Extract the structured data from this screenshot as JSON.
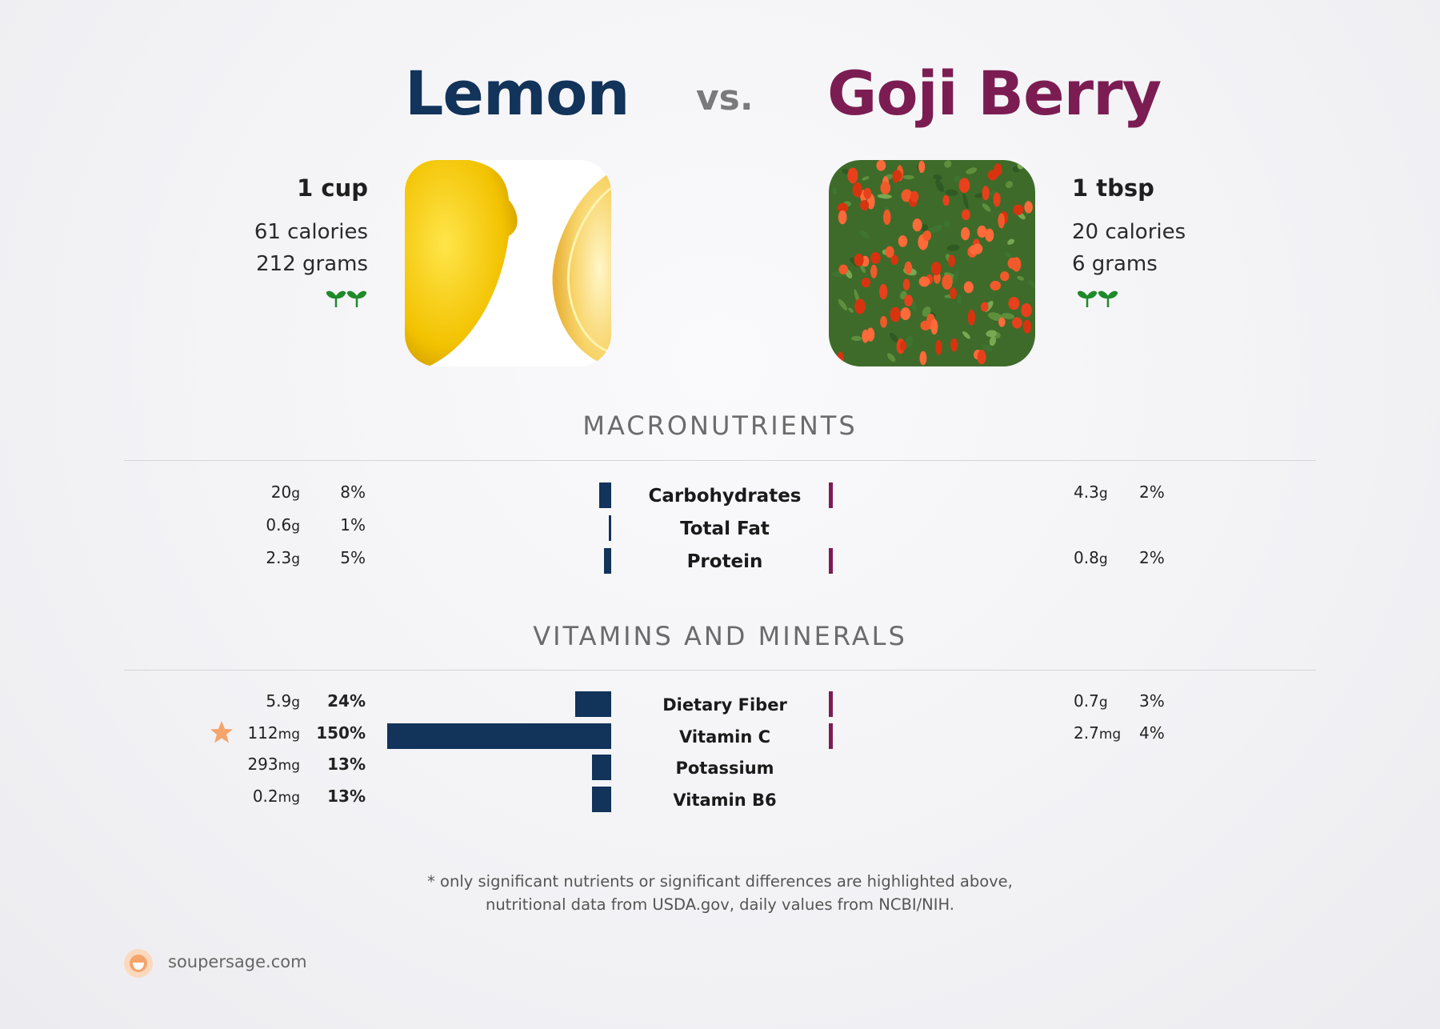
{
  "header": {
    "left_food": "Lemon",
    "vs": "vs.",
    "right_food": "Goji Berry",
    "left_color": "#12335a",
    "right_color": "#7b1d52"
  },
  "left_info": {
    "serving": "1 cup",
    "calories": "61 calories",
    "grams": "212 grams",
    "icon": "vegan-sprout-icon"
  },
  "right_info": {
    "serving": "1 tbsp",
    "calories": "20 calories",
    "grams": "6 grams",
    "icon": "vegan-sprout-icon"
  },
  "sections": {
    "macro_title": "MACRONUTRIENTS",
    "vitamins_title": "VITAMINS AND MINERALS"
  },
  "chart_data": {
    "type": "bar",
    "orientation": "horizontal",
    "layout": "diverging comparison",
    "series": [
      {
        "name": "Lemon",
        "color": "#12335a"
      },
      {
        "name": "Goji Berry",
        "color": "#7b1d52"
      }
    ],
    "macronutrients": [
      {
        "name": "Carbohydrates",
        "left_amount": "20",
        "left_unit": "g",
        "left_pct": "8%",
        "left_value": 8,
        "right_amount": "4.3",
        "right_unit": "g",
        "right_pct": "2%",
        "right_value": 2
      },
      {
        "name": "Total Fat",
        "left_amount": "0.6",
        "left_unit": "g",
        "left_pct": "1%",
        "left_value": 1,
        "right_amount": "",
        "right_unit": "",
        "right_pct": "",
        "right_value": 0
      },
      {
        "name": "Protein",
        "left_amount": "2.3",
        "left_unit": "g",
        "left_pct": "5%",
        "left_value": 5,
        "right_amount": "0.8",
        "right_unit": "g",
        "right_pct": "2%",
        "right_value": 2
      }
    ],
    "vitamins": [
      {
        "name": "Dietary Fiber",
        "left_amount": "5.9",
        "left_unit": "g",
        "left_pct": "24%",
        "left_value": 24,
        "right_amount": "0.7",
        "right_unit": "g",
        "right_pct": "3%",
        "right_value": 3
      },
      {
        "name": "Vitamin C",
        "left_amount": "112",
        "left_unit": "mg",
        "left_pct": "150%",
        "left_value": 150,
        "right_amount": "2.7",
        "right_unit": "mg",
        "right_pct": "4%",
        "right_value": 4,
        "star": true
      },
      {
        "name": "Potassium",
        "left_amount": "293",
        "left_unit": "mg",
        "left_pct": "13%",
        "left_value": 13,
        "right_amount": "",
        "right_unit": "",
        "right_pct": "",
        "right_value": 0
      },
      {
        "name": "Vitamin B6",
        "left_amount": "0.2",
        "left_unit": "mg",
        "left_pct": "13%",
        "left_value": 13,
        "right_amount": "",
        "right_unit": "",
        "right_pct": "",
        "right_value": 0
      }
    ]
  },
  "footer": {
    "note_line1": "* only significant nutrients or significant differences are highlighted above,",
    "note_line2": "nutritional data from USDA.gov, daily values from NCBI/NIH.",
    "brand": "soupersage.com",
    "brand_icon": "soupersage-logo-icon",
    "star_icon": "star-icon",
    "star_color": "#f5a46a"
  }
}
